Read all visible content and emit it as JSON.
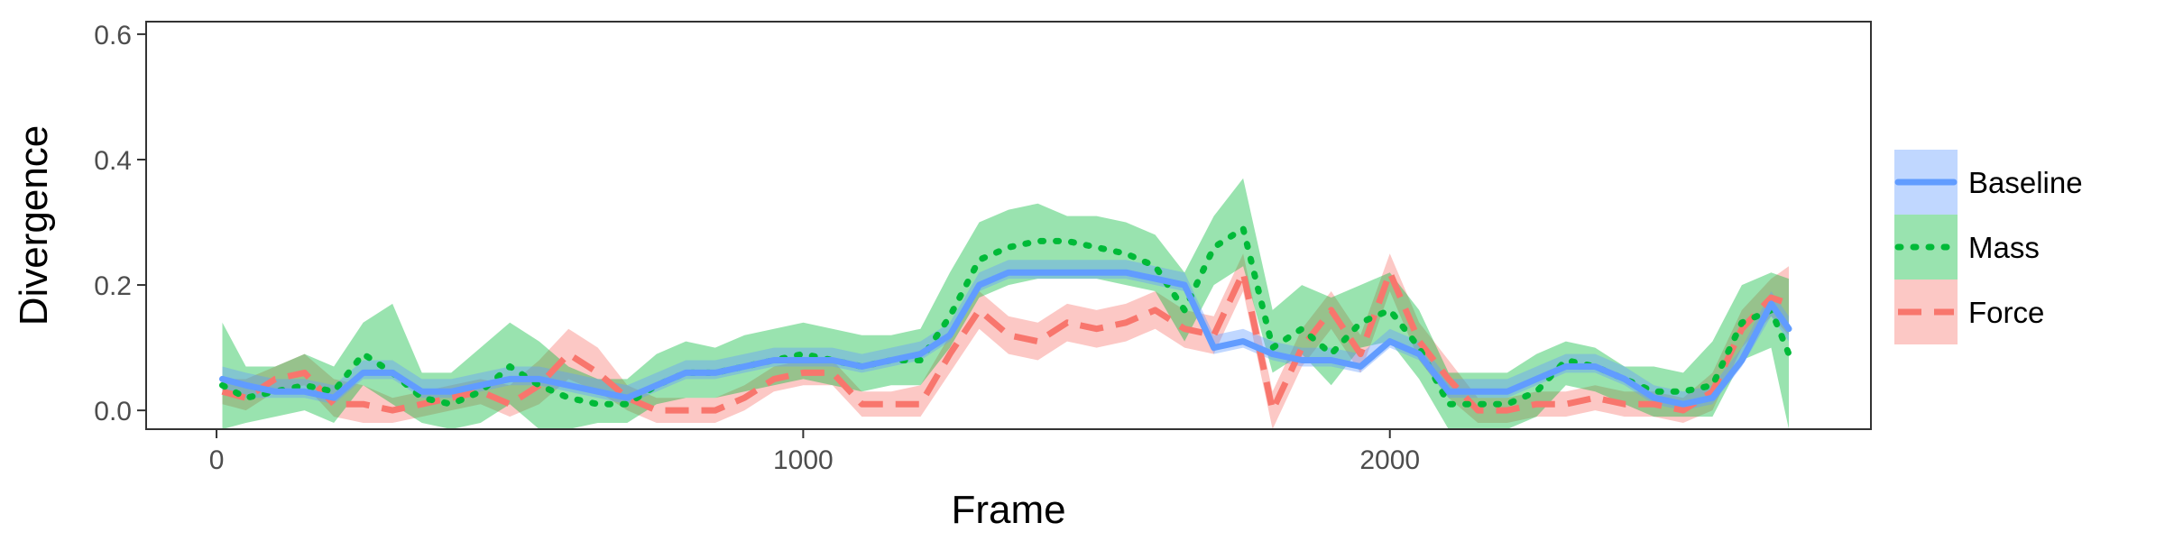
{
  "chart_data": {
    "type": "line",
    "title": "",
    "xlabel": "Frame",
    "ylabel": "Divergence",
    "xlim": [
      -120,
      2820
    ],
    "ylim": [
      -0.03,
      0.62
    ],
    "x_ticks": [
      0,
      1000,
      2000
    ],
    "x_tick_labels": [
      "0",
      "1000",
      "2000"
    ],
    "y_ticks": [
      0.0,
      0.2,
      0.4,
      0.6
    ],
    "y_tick_labels": [
      "0.0",
      "0.2",
      "0.4",
      "0.6"
    ],
    "grid": false,
    "legend_position": "right",
    "x": [
      10,
      50,
      100,
      150,
      200,
      250,
      300,
      350,
      400,
      450,
      500,
      550,
      600,
      650,
      700,
      750,
      800,
      850,
      900,
      950,
      1000,
      1050,
      1100,
      1150,
      1200,
      1250,
      1300,
      1350,
      1400,
      1450,
      1500,
      1550,
      1600,
      1650,
      1700,
      1750,
      1800,
      1850,
      1900,
      1950,
      2000,
      2050,
      2100,
      2150,
      2200,
      2250,
      2300,
      2350,
      2400,
      2450,
      2500,
      2550,
      2600,
      2650,
      2680
    ],
    "series": [
      {
        "name": "Baseline",
        "color": "#619CFF",
        "line_style": "solid",
        "values": [
          0.05,
          0.04,
          0.03,
          0.03,
          0.02,
          0.06,
          0.06,
          0.03,
          0.03,
          0.04,
          0.05,
          0.05,
          0.04,
          0.03,
          0.02,
          0.04,
          0.06,
          0.06,
          0.07,
          0.08,
          0.08,
          0.08,
          0.07,
          0.08,
          0.09,
          0.12,
          0.2,
          0.22,
          0.22,
          0.22,
          0.22,
          0.22,
          0.21,
          0.2,
          0.1,
          0.11,
          0.09,
          0.08,
          0.08,
          0.07,
          0.11,
          0.09,
          0.03,
          0.03,
          0.03,
          0.05,
          0.07,
          0.07,
          0.05,
          0.02,
          0.01,
          0.02,
          0.08,
          0.17,
          0.13
        ],
        "lower": [
          0.03,
          0.02,
          0.02,
          0.02,
          0.01,
          0.05,
          0.05,
          0.02,
          0.02,
          0.03,
          0.04,
          0.04,
          0.03,
          0.02,
          0.01,
          0.03,
          0.05,
          0.05,
          0.06,
          0.07,
          0.07,
          0.07,
          0.06,
          0.07,
          0.08,
          0.11,
          0.19,
          0.21,
          0.21,
          0.21,
          0.21,
          0.21,
          0.2,
          0.19,
          0.09,
          0.1,
          0.08,
          0.07,
          0.07,
          0.06,
          0.1,
          0.08,
          0.02,
          0.02,
          0.02,
          0.04,
          0.06,
          0.06,
          0.04,
          0.01,
          0.0,
          0.01,
          0.07,
          0.15,
          0.11
        ],
        "upper": [
          0.07,
          0.06,
          0.05,
          0.05,
          0.04,
          0.08,
          0.08,
          0.05,
          0.05,
          0.06,
          0.07,
          0.07,
          0.06,
          0.05,
          0.04,
          0.06,
          0.08,
          0.08,
          0.09,
          0.1,
          0.1,
          0.1,
          0.09,
          0.1,
          0.11,
          0.14,
          0.22,
          0.24,
          0.24,
          0.24,
          0.24,
          0.24,
          0.23,
          0.22,
          0.12,
          0.13,
          0.11,
          0.1,
          0.1,
          0.09,
          0.13,
          0.11,
          0.05,
          0.05,
          0.05,
          0.07,
          0.09,
          0.09,
          0.07,
          0.04,
          0.03,
          0.04,
          0.1,
          0.19,
          0.15
        ]
      },
      {
        "name": "Mass",
        "color": "#00BA38",
        "line_style": "dotted",
        "values": [
          0.04,
          0.02,
          0.03,
          0.04,
          0.03,
          0.09,
          0.06,
          0.02,
          0.01,
          0.03,
          0.07,
          0.04,
          0.02,
          0.01,
          0.01,
          0.04,
          0.06,
          0.06,
          0.07,
          0.08,
          0.09,
          0.08,
          0.07,
          0.08,
          0.08,
          0.15,
          0.24,
          0.26,
          0.27,
          0.27,
          0.26,
          0.25,
          0.23,
          0.16,
          0.26,
          0.29,
          0.1,
          0.13,
          0.09,
          0.14,
          0.16,
          0.1,
          0.01,
          0.01,
          0.01,
          0.03,
          0.08,
          0.07,
          0.05,
          0.03,
          0.03,
          0.04,
          0.14,
          0.16,
          0.09
        ],
        "lower": [
          -0.03,
          -0.02,
          -0.01,
          0.0,
          -0.02,
          0.04,
          0.01,
          -0.02,
          -0.03,
          -0.02,
          0.01,
          -0.03,
          -0.03,
          -0.02,
          -0.02,
          0.01,
          0.02,
          0.02,
          0.03,
          0.04,
          0.05,
          0.04,
          0.03,
          0.04,
          0.04,
          0.1,
          0.18,
          0.2,
          0.21,
          0.21,
          0.21,
          0.2,
          0.19,
          0.11,
          0.2,
          0.23,
          0.06,
          0.09,
          0.04,
          0.1,
          0.11,
          0.05,
          -0.03,
          -0.03,
          -0.03,
          -0.01,
          0.04,
          0.03,
          0.01,
          -0.01,
          -0.01,
          -0.01,
          0.08,
          0.1,
          -0.03
        ],
        "upper": [
          0.14,
          0.07,
          0.07,
          0.09,
          0.07,
          0.14,
          0.17,
          0.06,
          0.06,
          0.1,
          0.14,
          0.11,
          0.07,
          0.05,
          0.05,
          0.09,
          0.11,
          0.1,
          0.12,
          0.13,
          0.14,
          0.13,
          0.12,
          0.12,
          0.13,
          0.22,
          0.3,
          0.32,
          0.33,
          0.31,
          0.31,
          0.3,
          0.28,
          0.22,
          0.31,
          0.37,
          0.16,
          0.2,
          0.18,
          0.2,
          0.22,
          0.16,
          0.06,
          0.06,
          0.06,
          0.09,
          0.11,
          0.1,
          0.07,
          0.07,
          0.06,
          0.11,
          0.2,
          0.22,
          0.21
        ]
      },
      {
        "name": "Force",
        "color": "#F8766D",
        "line_style": "dashed",
        "values": [
          0.03,
          0.02,
          0.05,
          0.06,
          0.01,
          0.01,
          0.0,
          0.01,
          0.02,
          0.03,
          0.01,
          0.04,
          0.09,
          0.06,
          0.02,
          0.0,
          0.0,
          0.0,
          0.02,
          0.05,
          0.06,
          0.06,
          0.01,
          0.01,
          0.01,
          0.09,
          0.16,
          0.12,
          0.11,
          0.14,
          0.13,
          0.14,
          0.16,
          0.13,
          0.12,
          0.22,
          0.0,
          0.1,
          0.16,
          0.09,
          0.22,
          0.11,
          0.05,
          0.0,
          0.0,
          0.01,
          0.01,
          0.02,
          0.01,
          0.01,
          0.0,
          0.03,
          0.13,
          0.18,
          0.17
        ],
        "lower": [
          0.01,
          0.0,
          0.03,
          0.04,
          -0.01,
          -0.02,
          -0.02,
          -0.01,
          0.0,
          0.01,
          -0.01,
          0.01,
          0.05,
          0.03,
          0.0,
          -0.02,
          -0.02,
          -0.02,
          0.0,
          0.03,
          0.04,
          0.04,
          -0.01,
          -0.01,
          -0.01,
          0.06,
          0.13,
          0.09,
          0.08,
          0.11,
          0.1,
          0.11,
          0.13,
          0.1,
          0.09,
          0.19,
          -0.03,
          0.07,
          0.13,
          0.06,
          0.19,
          0.08,
          0.02,
          -0.02,
          -0.02,
          -0.01,
          -0.01,
          0.0,
          -0.01,
          -0.01,
          -0.02,
          0.0,
          0.1,
          0.15,
          0.12
        ],
        "upper": [
          0.05,
          0.05,
          0.07,
          0.09,
          0.05,
          0.04,
          0.02,
          0.03,
          0.04,
          0.05,
          0.04,
          0.08,
          0.13,
          0.1,
          0.04,
          0.02,
          0.02,
          0.02,
          0.04,
          0.07,
          0.08,
          0.08,
          0.03,
          0.03,
          0.04,
          0.12,
          0.19,
          0.15,
          0.14,
          0.17,
          0.16,
          0.17,
          0.19,
          0.16,
          0.15,
          0.25,
          0.03,
          0.13,
          0.19,
          0.12,
          0.25,
          0.14,
          0.08,
          0.02,
          0.02,
          0.03,
          0.03,
          0.04,
          0.03,
          0.03,
          0.02,
          0.06,
          0.16,
          0.21,
          0.23
        ]
      }
    ]
  }
}
